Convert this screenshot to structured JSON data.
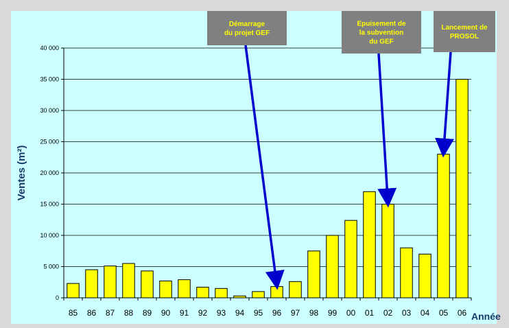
{
  "chart_data": {
    "type": "bar",
    "categories": [
      "85",
      "86",
      "87",
      "88",
      "89",
      "90",
      "91",
      "92",
      "93",
      "94",
      "95",
      "96",
      "97",
      "98",
      "99",
      "00",
      "01",
      "02",
      "03",
      "04",
      "05",
      "06"
    ],
    "values": [
      2300,
      4500,
      5100,
      5500,
      4300,
      2700,
      2900,
      1700,
      1500,
      300,
      1000,
      1800,
      2600,
      7500,
      10000,
      12400,
      17000,
      15000,
      8000,
      7000,
      23000,
      35000
    ],
    "xlabel": "Année",
    "ylabel": "Ventes (m²)",
    "ylim": [
      0,
      40000
    ],
    "yticks": [
      0,
      5000,
      10000,
      15000,
      20000,
      25000,
      30000,
      35000,
      40000
    ],
    "ytick_labels": [
      "0",
      "5 000",
      "10 000",
      "15 000",
      "20 000",
      "25 000",
      "30 000",
      "35 000",
      "40 000"
    ],
    "grid": true,
    "legend": "none",
    "colors": {
      "outer_background": "#d9d9d9",
      "plot_background": "#ccffff",
      "bar_fill": "#ffff00",
      "bar_stroke": "#000000",
      "arrow": "#0000cc",
      "annotation_box": "#808080",
      "annotation_text": "#ffff00",
      "axis_title": "#1a3a6b"
    },
    "annotations": [
      {
        "lines": [
          "Démarrage",
          "du projet GEF"
        ],
        "target_category": "96",
        "target_value": 1800
      },
      {
        "lines": [
          "Epuisement de",
          "la subvention",
          "du GEF"
        ],
        "target_category": "02",
        "target_value": 15000
      },
      {
        "lines": [
          "Lancement de",
          "PROSOL"
        ],
        "target_category": "05",
        "target_value": 23000
      }
    ]
  }
}
